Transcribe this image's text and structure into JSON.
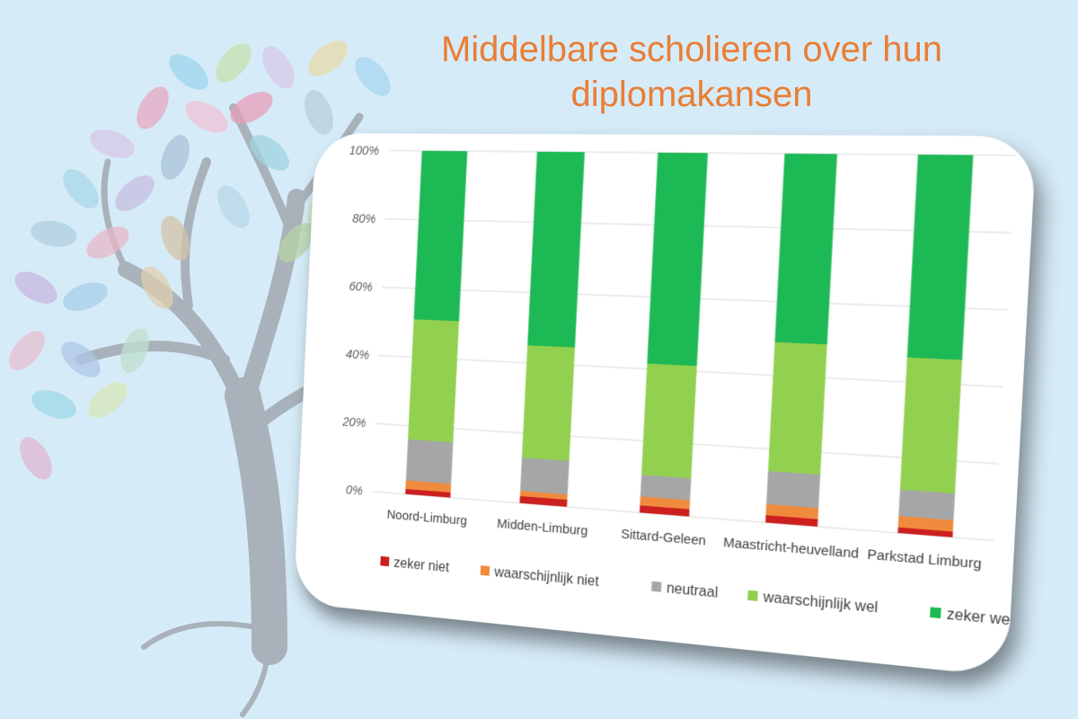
{
  "title_line1": "Middelbare scholieren over hun",
  "title_line2": "diplomakansen",
  "colors": {
    "background": "#d6ebf8",
    "title": "#e97e35",
    "zeker_niet": "#cc1f1f",
    "waarschijnlijk_niet": "#f08a3c",
    "neutraal": "#a6a6a6",
    "waarschijnlijk_wel": "#92d050",
    "zeker_wel": "#1db954"
  },
  "chart_data": {
    "type": "bar",
    "stacked": true,
    "categories": [
      "Noord-Limburg",
      "Midden-Limburg",
      "Sittard-Geleen",
      "Maastricht-heuvelland",
      "Parkstad Limburg"
    ],
    "yticks": [
      "0%",
      "20%",
      "40%",
      "60%",
      "80%",
      "100%"
    ],
    "ylim": [
      0,
      100
    ],
    "grid": true,
    "legend_position": "bottom",
    "series": [
      {
        "name": "zeker niet",
        "values": [
          1.5,
          2,
          2,
          2,
          1.5
        ]
      },
      {
        "name": "waarschijnlijk niet",
        "values": [
          2.5,
          1.5,
          2.5,
          3,
          3
        ]
      },
      {
        "name": "neutraal",
        "values": [
          12,
          9.5,
          6,
          9,
          7
        ]
      },
      {
        "name": "waarschijnlijk wel",
        "values": [
          35,
          32,
          31,
          35,
          35
        ]
      },
      {
        "name": "zeker wel",
        "values": [
          49,
          55,
          58.5,
          51,
          53.5
        ]
      }
    ]
  }
}
